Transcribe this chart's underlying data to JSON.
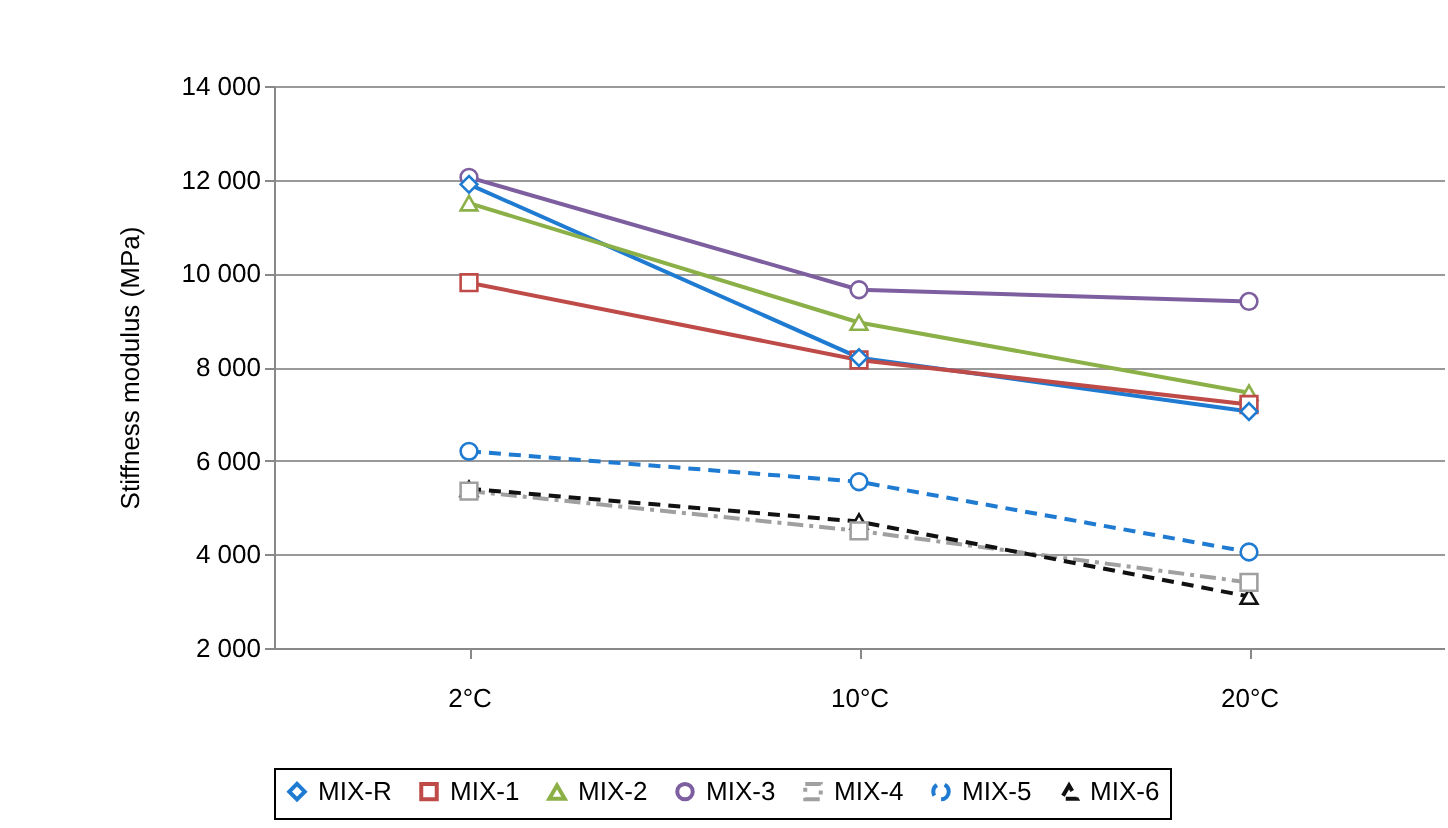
{
  "chart_data": {
    "type": "line",
    "ylabel": "Stiffness modulus (MPa)",
    "categories": [
      "2°C",
      "10°C",
      "20°C"
    ],
    "ylim": [
      2000,
      14000
    ],
    "yticks": [
      {
        "value": 2000,
        "label": "2 000"
      },
      {
        "value": 4000,
        "label": "4 000"
      },
      {
        "value": 6000,
        "label": "6 000"
      },
      {
        "value": 8000,
        "label": "8 000"
      },
      {
        "value": 10000,
        "label": "10 000"
      },
      {
        "value": 12000,
        "label": "12 000"
      },
      {
        "value": 14000,
        "label": "14 000"
      }
    ],
    "grid": "y",
    "legend": "bottom",
    "series": [
      {
        "name": "MIX-R",
        "color": "#1f7bd1",
        "marker": "diamond",
        "line_style": "solid",
        "values": [
          11900,
          8200,
          7050
        ]
      },
      {
        "name": "MIX-1",
        "color": "#be4b48",
        "marker": "square",
        "line_style": "solid",
        "values": [
          9800,
          8150,
          7200
        ]
      },
      {
        "name": "MIX-2",
        "color": "#8cb048",
        "marker": "triangle",
        "line_style": "solid",
        "values": [
          11500,
          8950,
          7450
        ]
      },
      {
        "name": "MIX-3",
        "color": "#7d5fa0",
        "marker": "circle",
        "line_style": "solid",
        "values": [
          12050,
          9650,
          9400
        ]
      },
      {
        "name": "MIX-4",
        "color": "#a0a0a0",
        "marker": "square",
        "line_style": "dashdot",
        "values": [
          5350,
          4500,
          3400
        ]
      },
      {
        "name": "MIX-5",
        "color": "#1f7bd1",
        "marker": "circle",
        "line_style": "dashed",
        "values": [
          6200,
          5550,
          4050
        ]
      },
      {
        "name": "MIX-6",
        "color": "#111111",
        "marker": "triangle",
        "line_style": "dashed",
        "values": [
          5400,
          4700,
          3100
        ]
      }
    ]
  }
}
